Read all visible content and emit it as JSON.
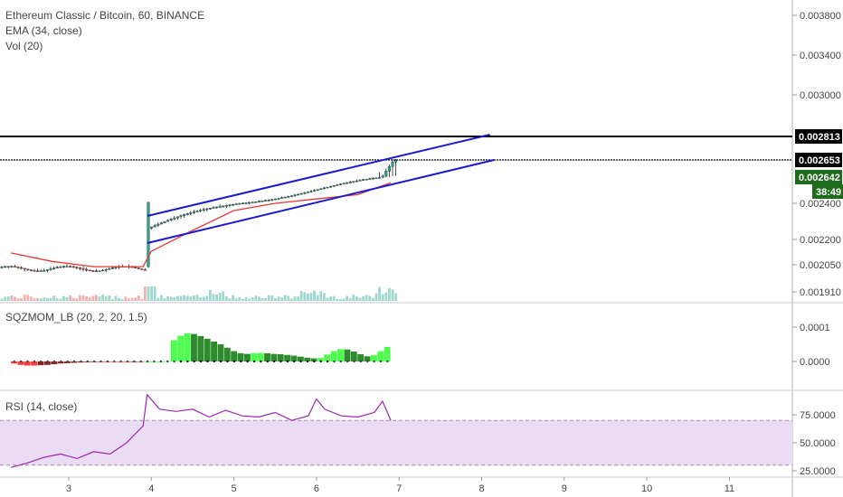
{
  "legend": {
    "symbol": "Ethereum Classic / Bitcoin, 60, BINANCE",
    "ema": "EMA (34, close)",
    "vol": "Vol (20)"
  },
  "indicators": {
    "sqz_label": "SQZMOM_LB (20, 2, 20, 1.5)",
    "rsi_label": "RSI (14, close)"
  },
  "price_tags": {
    "resistance": "0.002813",
    "level": "0.002653",
    "last": "0.002642",
    "countdown": "38:49"
  },
  "colors": {
    "up": "#26a69a",
    "down": "#ef5350",
    "ema": "#e53935",
    "channel": "#1a1acd",
    "rsi": "#9c27b0",
    "rsi_band": "#eadcf5",
    "sqz_strong_up": "#4cff4c",
    "sqz_weak_up": "#2e8b2e",
    "sqz_strong_down": "#ff3b3b",
    "sqz_weak_down": "#8b2525"
  },
  "chart_data": {
    "type": "candlestick",
    "x_ticks": [
      "3",
      "4",
      "5",
      "6",
      "7",
      "8",
      "9",
      "10",
      "11"
    ],
    "price_ticks": [
      "0.003800",
      "0.003400",
      "0.003000",
      "0.002400",
      "0.002200",
      "0.002050",
      "0.001910"
    ],
    "price_scale": [
      [
        0.0038,
        17
      ],
      [
        0.0034,
        61
      ],
      [
        0.003,
        105
      ],
      [
        0.002813,
        151
      ],
      [
        0.002653,
        177
      ],
      [
        0.002642,
        196
      ],
      [
        0.0024,
        225
      ],
      [
        0.0022,
        265
      ],
      [
        0.00205,
        293
      ],
      [
        0.00191,
        323
      ]
    ],
    "candles_summary": {
      "start_day": 2.3,
      "end_day": 6.9,
      "pre_breakout_range": [
        0.00201,
        0.00206
      ],
      "breakout_day": 3.95,
      "breakout_high": 0.00241,
      "end_price": 0.002642
    },
    "ema_34": [
      [
        2.3,
        0.00212
      ],
      [
        2.8,
        0.00207
      ],
      [
        3.3,
        0.00204
      ],
      [
        3.9,
        0.00204
      ],
      [
        4.0,
        0.00213
      ],
      [
        4.5,
        0.00225
      ],
      [
        5.0,
        0.00236
      ],
      [
        5.5,
        0.0024
      ],
      [
        6.0,
        0.00244
      ],
      [
        6.5,
        0.00248
      ],
      [
        6.9,
        0.00259
      ]
    ],
    "channel": {
      "upper": [
        [
          3.95,
          0.00241
        ],
        [
          8.1,
          0.00281
        ]
      ],
      "lower": [
        [
          3.95,
          0.00219
        ],
        [
          8.15,
          0.002653
        ]
      ]
    },
    "horizontal_lines": [
      0.002813,
      0.002653
    ],
    "sqz_ticks": [
      "0.0001",
      "0.0000"
    ],
    "sqz_momentum": {
      "day_range": [
        2.3,
        6.9
      ],
      "values": [
        -6e-06,
        -1e-05,
        -1.2e-05,
        -1.2e-05,
        -1.1e-05,
        -1e-05,
        -8e-06,
        -6e-06,
        -5e-06,
        -4e-06,
        -3e-06,
        -2e-06,
        -1e-06,
        -1e-06,
        -1e-06,
        -1e-06,
        -2e-06,
        -2e-06,
        -1e-06,
        -1e-06,
        0.0,
        0.0,
        0.0,
        1e-06,
        6.2e-05,
        7.5e-05,
        8.2e-05,
        8e-05,
        7.4e-05,
        6.6e-05,
        5.8e-05,
        5e-05,
        4e-05,
        3e-05,
        2.4e-05,
        2.2e-05,
        2.4e-05,
        2.5e-05,
        2.4e-05,
        2.2e-05,
        2.1e-05,
        1.9e-05,
        1.7e-05,
        1.4e-05,
        1.1e-05,
        9e-06,
        1e-05,
        2e-05,
        3e-05,
        3.6e-05,
        3.5e-05,
        2.9e-05,
        2.1e-05,
        1.5e-05,
        1.8e-05,
        3e-05,
        4.2e-05
      ]
    },
    "rsi_ticks": [
      "75.0000",
      "50.0000",
      "25.0000"
    ],
    "rsi_bands": [
      70,
      30
    ],
    "rsi_14": [
      [
        2.3,
        28
      ],
      [
        2.5,
        32
      ],
      [
        2.7,
        37
      ],
      [
        2.9,
        40
      ],
      [
        3.1,
        36
      ],
      [
        3.3,
        42
      ],
      [
        3.5,
        40
      ],
      [
        3.7,
        50
      ],
      [
        3.9,
        65
      ],
      [
        3.95,
        93
      ],
      [
        4.1,
        80
      ],
      [
        4.3,
        78
      ],
      [
        4.5,
        80
      ],
      [
        4.7,
        73
      ],
      [
        4.9,
        79
      ],
      [
        5.1,
        74
      ],
      [
        5.3,
        73
      ],
      [
        5.5,
        77
      ],
      [
        5.7,
        70
      ],
      [
        5.9,
        74
      ],
      [
        6.0,
        89
      ],
      [
        6.1,
        80
      ],
      [
        6.3,
        74
      ],
      [
        6.5,
        73
      ],
      [
        6.7,
        77
      ],
      [
        6.8,
        87
      ],
      [
        6.9,
        70
      ]
    ]
  }
}
